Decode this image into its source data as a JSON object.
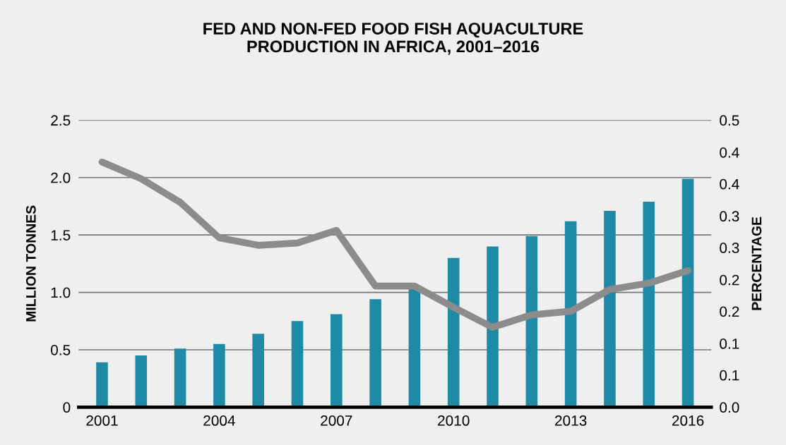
{
  "chart_data": {
    "type": "bar",
    "title": "FED AND NON-FED FOOD FISH AQUACULTURE\nPRODUCTION IN AFRICA, 2001–2016",
    "ylabel": "MILLION TONNES",
    "y2label": "PERCENTAGE",
    "categories": [
      "2001",
      null,
      null,
      "2004",
      null,
      null,
      "2007",
      null,
      null,
      "2010",
      null,
      null,
      "2013",
      null,
      null,
      "2016"
    ],
    "series": [
      {
        "color": "#1f8aa6",
        "values": [
          0.39,
          0.45,
          0.51,
          0.55,
          0.64,
          0.75,
          0.81,
          0.94,
          1.03,
          1.3,
          1.4,
          1.49,
          1.62,
          1.71,
          1.79,
          1.99
        ]
      },
      {
        "type": "line",
        "axis": "y2",
        "color": "#8c8c8c",
        "values": [
          0.427,
          0.398,
          0.357,
          0.295,
          0.282,
          0.286,
          0.308,
          0.211,
          0.211,
          0.174,
          0.139,
          0.161,
          0.167,
          0.205,
          0.216,
          0.238
        ]
      }
    ],
    "ylim": [
      0,
      2.5
    ],
    "yticks": [
      {
        "value": 0,
        "label": "0"
      },
      0.5,
      {
        "value": 1,
        "label": "1.0"
      },
      1.5,
      {
        "value": 2,
        "label": "2.0"
      },
      2.5
    ],
    "y2lim": [
      0,
      0.5
    ],
    "y2ticks": [
      {
        "value": 0,
        "label": "0.0"
      },
      {
        "value": 0.056,
        "label": "0.1"
      },
      {
        "value": 0.111,
        "label": "0.1"
      },
      {
        "value": 0.167,
        "label": "0.2"
      },
      {
        "value": 0.222,
        "label": "0.2"
      },
      {
        "value": 0.278,
        "label": "0.3"
      },
      {
        "value": 0.333,
        "label": "0.3"
      },
      {
        "value": 0.389,
        "label": "0.4"
      },
      {
        "value": 0.444,
        "label": "0.4"
      },
      0.5
    ],
    "grid": "y",
    "marker": "none",
    "line_style": "solid"
  }
}
